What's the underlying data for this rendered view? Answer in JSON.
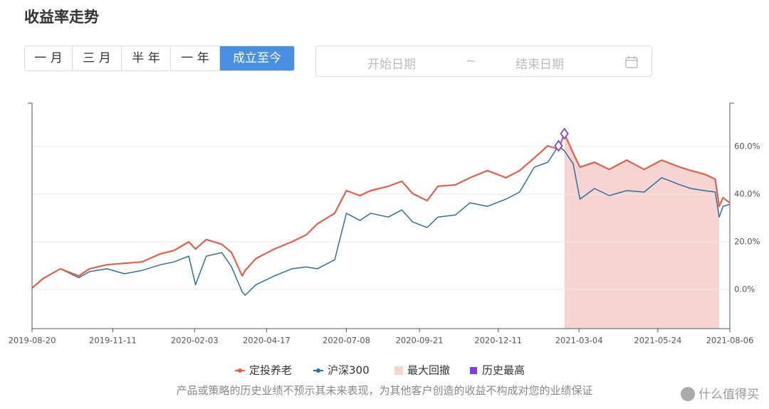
{
  "header": {
    "title": "收益率走势"
  },
  "controls": {
    "ranges": [
      "一 月",
      "三 月",
      "半 年",
      "一 年",
      "成立至今"
    ],
    "active": 4,
    "date_picker": {
      "start": "开始日期",
      "separator": "~",
      "end": "结束日期"
    }
  },
  "chart_data": {
    "type": "line",
    "x": [
      "2019-08-20",
      "2019-08-31",
      "2019-09-18",
      "2019-10-07",
      "2019-10-18",
      "2019-11-05",
      "2019-11-23",
      "2019-12-11",
      "2019-12-30",
      "2020-01-13",
      "2020-01-28",
      "2020-02-04",
      "2020-02-15",
      "2020-03-02",
      "2020-03-12",
      "2020-03-23",
      "2020-03-26",
      "2020-04-06",
      "2020-04-25",
      "2020-05-13",
      "2020-05-28",
      "2020-06-08",
      "2020-06-26",
      "2020-07-08",
      "2020-07-22",
      "2020-08-02",
      "2020-08-20",
      "2020-09-03",
      "2020-09-14",
      "2020-09-29",
      "2020-10-10",
      "2020-10-28",
      "2020-11-12",
      "2020-11-30",
      "2020-12-19",
      "2021-01-02",
      "2021-01-17",
      "2021-01-31",
      "2021-02-11",
      "2021-02-17",
      "2021-02-26",
      "2021-03-05",
      "2021-03-20",
      "2021-04-04",
      "2021-04-22",
      "2021-05-10",
      "2021-05-28",
      "2021-06-16",
      "2021-06-27",
      "2021-07-11",
      "2021-07-22",
      "2021-07-26",
      "2021-07-30",
      "2021-08-06"
    ],
    "series": [
      {
        "name": "定投养老",
        "color": "#e0604a",
        "values": [
          0.6,
          4.5,
          8.7,
          5.7,
          8.7,
          10.4,
          11,
          11.6,
          15,
          16.4,
          20,
          17,
          21,
          19,
          15.5,
          5.7,
          8,
          13,
          17,
          20,
          23,
          27.5,
          32,
          41.5,
          39.4,
          41.5,
          43.3,
          45.4,
          40.3,
          37.3,
          43.3,
          43.9,
          46.9,
          49.9,
          46.9,
          49.9,
          55.2,
          60.3,
          58.8,
          65.4,
          57.3,
          51.3,
          53.4,
          50.4,
          54.3,
          50.4,
          54.3,
          51.3,
          49.9,
          48.4,
          46.3,
          34.9,
          38.5,
          36.4
        ]
      },
      {
        "name": "沪深300",
        "color": "#2f6f9f",
        "values": [
          0.6,
          4.5,
          8.7,
          5,
          7.5,
          8.7,
          6.6,
          8,
          10.4,
          11.6,
          14,
          2,
          14,
          15.5,
          9.5,
          -1,
          -2.4,
          2,
          5.7,
          8.7,
          9.5,
          8.7,
          12.5,
          32,
          29,
          32,
          30.4,
          33.4,
          28.4,
          26,
          30.4,
          31.3,
          36.4,
          34.9,
          37.9,
          40.9,
          51.3,
          53.4,
          60.3,
          58.2,
          52.8,
          37.9,
          42.4,
          39.4,
          41.5,
          40.9,
          46.9,
          43.9,
          42.4,
          41.5,
          40.9,
          30.4,
          34.9,
          35.8
        ]
      }
    ],
    "drawdown": {
      "name": "最大回撤",
      "color": "#f6d4d1",
      "start": "2021-02-17",
      "end": "2021-07-26"
    },
    "peaks": {
      "name": "历史最高",
      "color": "#7b3fe4",
      "points": [
        {
          "x": "2021-02-11",
          "y": 60.3
        },
        {
          "x": "2021-02-17",
          "y": 65.4
        }
      ]
    },
    "xlim": [
      "2019-08-20",
      "2021-08-06"
    ],
    "xticks": [
      "2019-08-20",
      "2019-11-11",
      "2020-02-03",
      "2020-04-17",
      "2020-07-08",
      "2020-09-21",
      "2020-12-11",
      "2021-03-04",
      "2021-05-24",
      "2021-08-06"
    ],
    "ylim": [
      -16.4,
      78.2
    ],
    "yticks": [
      {
        "value": 0,
        "label": "0.0%"
      },
      {
        "value": 20,
        "label": "20.0%"
      },
      {
        "value": 40,
        "label": "40.0%"
      },
      {
        "value": 60,
        "label": "60.0%"
      }
    ],
    "grid": true
  },
  "disclaimer": "产品或策略的历史业绩不预示其未来表现，为其他客户创造的收益不构成对您的业绩保证",
  "watermark": "什么值得买"
}
